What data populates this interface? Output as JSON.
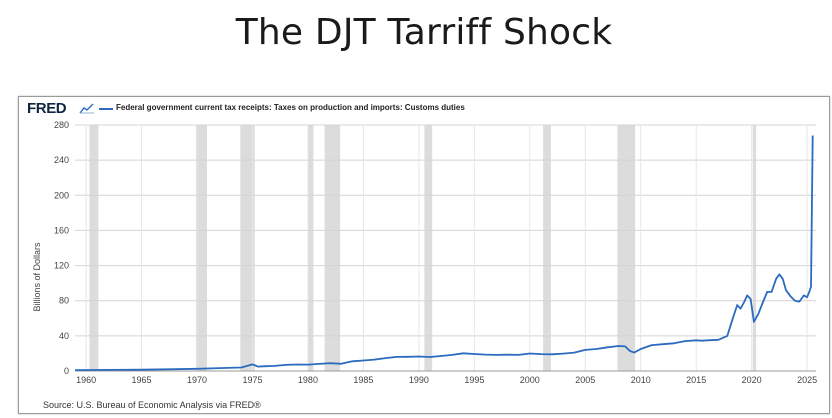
{
  "page": {
    "title": "The DJT Tarriff Shock"
  },
  "chart_header": {
    "brand": "FRED"
  },
  "source_note": "Source: U.S. Bureau of Economic Analysis via FRED®",
  "colors": {
    "series": "#2b6bbf",
    "recession": "#dcdcdc",
    "grid": "#d4d4d4",
    "brand": "#0e2440"
  },
  "icons": {
    "legend_graph": "line-chart-icon"
  },
  "chart_data": {
    "type": "line",
    "title": "",
    "xlabel": "",
    "ylabel": "Billions of Dollars",
    "xlim": [
      1959,
      2025.8
    ],
    "ylim": [
      0,
      280
    ],
    "grid": true,
    "legend_position": "top-left",
    "x_ticks": [
      1960,
      1965,
      1970,
      1975,
      1980,
      1985,
      1990,
      1995,
      2000,
      2005,
      2010,
      2015,
      2020,
      2025
    ],
    "y_ticks": [
      0,
      40,
      80,
      120,
      160,
      200,
      240,
      280
    ],
    "recessions": [
      [
        1960.3,
        1961.1
      ],
      [
        1969.9,
        1970.9
      ],
      [
        1973.9,
        1975.2
      ],
      [
        1980.0,
        1980.5
      ],
      [
        1981.5,
        1982.9
      ],
      [
        1990.5,
        1991.2
      ],
      [
        2001.2,
        2001.9
      ],
      [
        2007.9,
        2009.5
      ],
      [
        2020.1,
        2020.4
      ]
    ],
    "series": [
      {
        "name": "Federal government current tax receipts: Taxes on production and imports: Customs duties",
        "x": [
          1959,
          1962,
          1965,
          1968,
          1970,
          1972,
          1974,
          1975,
          1975.5,
          1976,
          1977,
          1978,
          1979,
          1980,
          1981,
          1982,
          1983,
          1984,
          1985,
          1986,
          1987,
          1988,
          1989,
          1990,
          1991,
          1992,
          1993,
          1994,
          1995,
          1996,
          1997,
          1998,
          1999,
          2000,
          2001,
          2002,
          2003,
          2004,
          2005,
          2006,
          2007,
          2008,
          2008.6,
          2009,
          2009.4,
          2010,
          2011,
          2012,
          2013,
          2014,
          2015,
          2015.5,
          2016,
          2017,
          2017.8,
          2018.3,
          2018.7,
          2019,
          2019.3,
          2019.6,
          2019.9,
          2020.2,
          2020.6,
          2021,
          2021.4,
          2021.8,
          2022.2,
          2022.5,
          2022.8,
          2023.1,
          2023.5,
          2023.9,
          2024.3,
          2024.7,
          2025.0,
          2025.2,
          2025.35,
          2025.5
        ],
        "y": [
          1.0,
          1.2,
          1.5,
          2.1,
          2.5,
          3.3,
          4.0,
          7.5,
          5.0,
          5.3,
          5.8,
          6.9,
          7.4,
          7.3,
          8.1,
          8.9,
          8.2,
          11.0,
          12.0,
          13.0,
          14.7,
          16.0,
          16.2,
          16.5,
          15.9,
          17.1,
          18.3,
          20.1,
          19.3,
          18.7,
          18.3,
          18.5,
          18.3,
          19.9,
          19.2,
          19.0,
          19.8,
          21.0,
          24.0,
          25.0,
          27.0,
          28.5,
          28.0,
          23.0,
          21.0,
          25.0,
          29.5,
          30.5,
          31.5,
          34.0,
          35.0,
          34.5,
          35.0,
          35.5,
          40.0,
          60.0,
          75.0,
          71.0,
          78.0,
          86.0,
          82.0,
          56.0,
          65.0,
          78.0,
          90.0,
          90.0,
          105.0,
          110.0,
          105.0,
          92.0,
          85.0,
          80.0,
          79.0,
          86.0,
          84.0,
          90.0,
          96.0,
          268.0
        ]
      }
    ]
  }
}
